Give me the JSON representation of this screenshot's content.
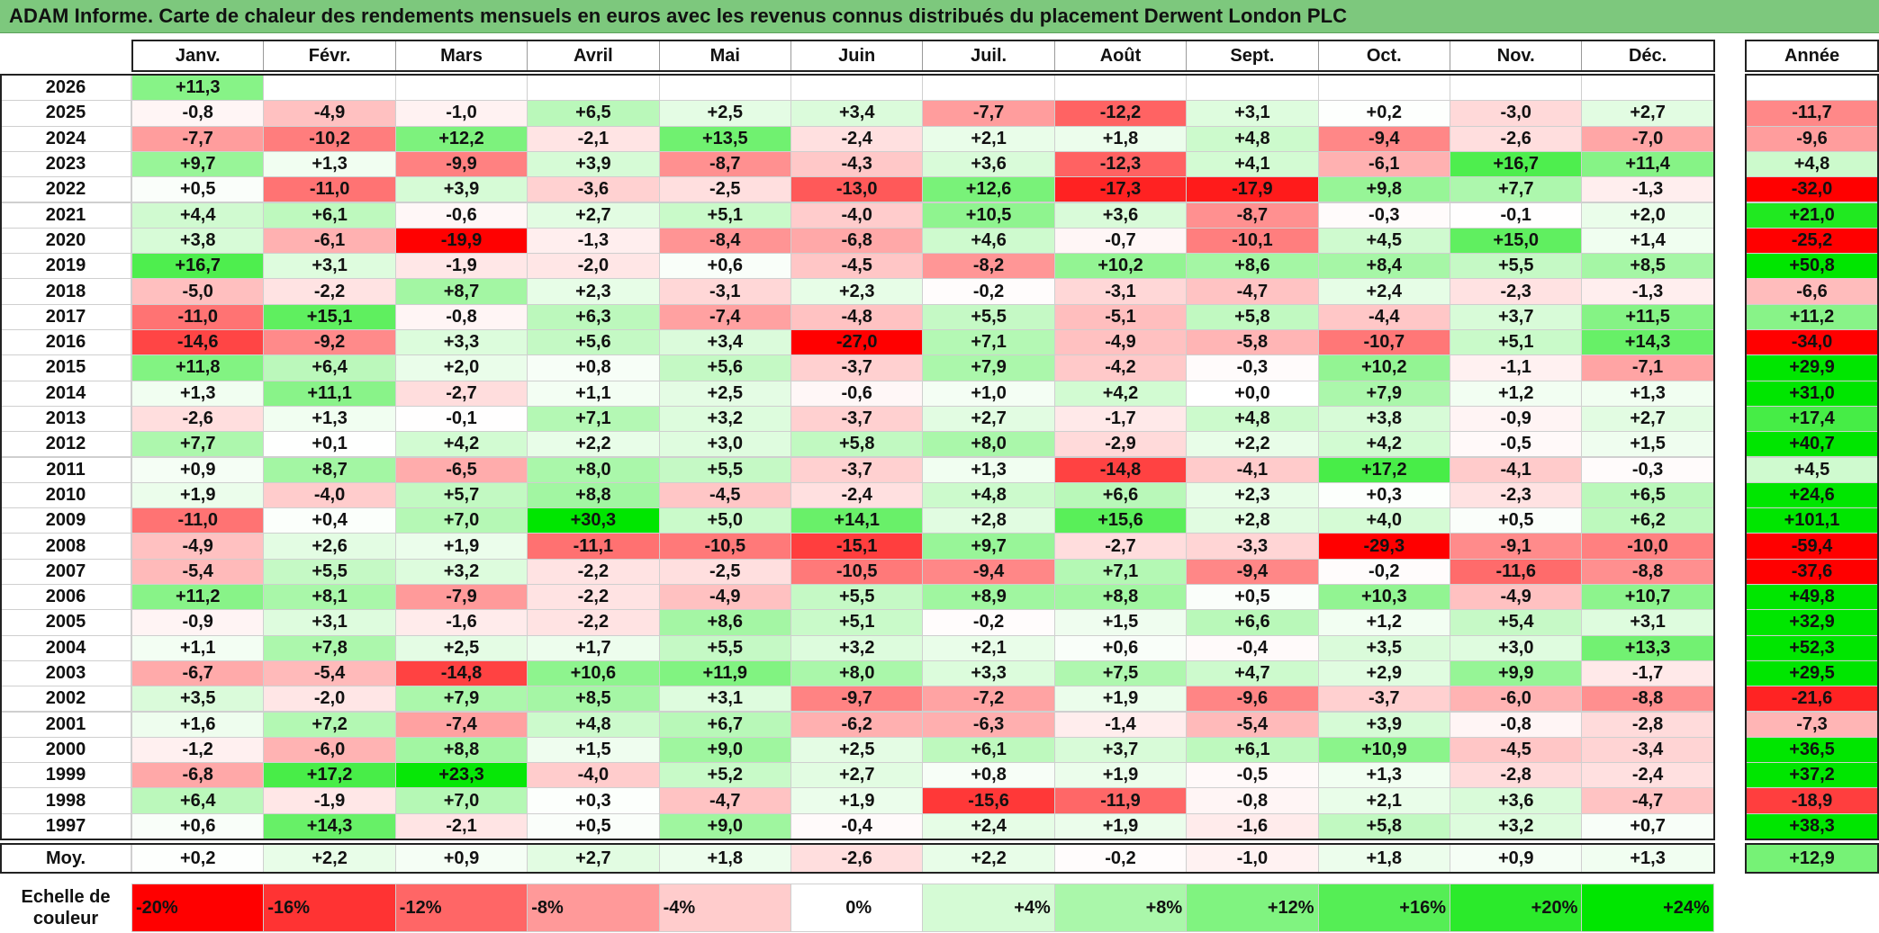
{
  "title": "ADAM Informe. Carte de chaleur des rendements mensuels en euros avec les revenus connus distribués du placement Derwent London PLC",
  "chart_data": {
    "type": "heatmap",
    "columns": [
      "Janv.",
      "Févr.",
      "Mars",
      "Avril",
      "Mai",
      "Juin",
      "Juil.",
      "Août",
      "Sept.",
      "Oct.",
      "Nov.",
      "Déc."
    ],
    "year_column_label": "Année",
    "average_row_label": "Moy.",
    "rows": [
      {
        "year": "2026",
        "values": [
          "+11,3",
          null,
          null,
          null,
          null,
          null,
          null,
          null,
          null,
          null,
          null,
          null
        ],
        "annual": null
      },
      {
        "year": "2025",
        "values": [
          "-0,8",
          "-4,9",
          "-1,0",
          "+6,5",
          "+2,5",
          "+3,4",
          "-7,7",
          "-12,2",
          "+3,1",
          "+0,2",
          "-3,0",
          "+2,7"
        ],
        "annual": "-11,7"
      },
      {
        "year": "2024",
        "values": [
          "-7,7",
          "-10,2",
          "+12,2",
          "-2,1",
          "+13,5",
          "-2,4",
          "+2,1",
          "+1,8",
          "+4,8",
          "-9,4",
          "-2,6",
          "-7,0"
        ],
        "annual": "-9,6"
      },
      {
        "year": "2023",
        "values": [
          "+9,7",
          "+1,3",
          "-9,9",
          "+3,9",
          "-8,7",
          "-4,3",
          "+3,6",
          "-12,3",
          "+4,1",
          "-6,1",
          "+16,7",
          "+11,4"
        ],
        "annual": "+4,8"
      },
      {
        "year": "2022",
        "values": [
          "+0,5",
          "-11,0",
          "+3,9",
          "-3,6",
          "-2,5",
          "-13,0",
          "+12,6",
          "-17,3",
          "-17,9",
          "+9,8",
          "+7,7",
          "-1,3"
        ],
        "annual": "-32,0"
      },
      {
        "year": "2021",
        "values": [
          "+4,4",
          "+6,1",
          "-0,6",
          "+2,7",
          "+5,1",
          "-4,0",
          "+10,5",
          "+3,6",
          "-8,7",
          "-0,3",
          "-0,1",
          "+2,0"
        ],
        "annual": "+21,0"
      },
      {
        "year": "2020",
        "values": [
          "+3,8",
          "-6,1",
          "-19,9",
          "-1,3",
          "-8,4",
          "-6,8",
          "+4,6",
          "-0,7",
          "-10,1",
          "+4,5",
          "+15,0",
          "+1,4"
        ],
        "annual": "-25,2"
      },
      {
        "year": "2019",
        "values": [
          "+16,7",
          "+3,1",
          "-1,9",
          "-2,0",
          "+0,6",
          "-4,5",
          "-8,2",
          "+10,2",
          "+8,6",
          "+8,4",
          "+5,5",
          "+8,5"
        ],
        "annual": "+50,8"
      },
      {
        "year": "2018",
        "values": [
          "-5,0",
          "-2,2",
          "+8,7",
          "+2,3",
          "-3,1",
          "+2,3",
          "-0,2",
          "-3,1",
          "-4,7",
          "+2,4",
          "-2,3",
          "-1,3"
        ],
        "annual": "-6,6"
      },
      {
        "year": "2017",
        "values": [
          "-11,0",
          "+15,1",
          "-0,8",
          "+6,3",
          "-7,4",
          "-4,8",
          "+5,5",
          "-5,1",
          "+5,8",
          "-4,4",
          "+3,7",
          "+11,5"
        ],
        "annual": "+11,2"
      },
      {
        "year": "2016",
        "values": [
          "-14,6",
          "-9,2",
          "+3,3",
          "+5,6",
          "+3,4",
          "-27,0",
          "+7,1",
          "-4,9",
          "-5,8",
          "-10,7",
          "+5,1",
          "+14,3"
        ],
        "annual": "-34,0"
      },
      {
        "year": "2015",
        "values": [
          "+11,8",
          "+6,4",
          "+2,0",
          "+0,8",
          "+5,6",
          "-3,7",
          "+7,9",
          "-4,2",
          "-0,3",
          "+10,2",
          "-1,1",
          "-7,1"
        ],
        "annual": "+29,9"
      },
      {
        "year": "2014",
        "values": [
          "+1,3",
          "+11,1",
          "-2,7",
          "+1,1",
          "+2,5",
          "-0,6",
          "+1,0",
          "+4,2",
          "+0,0",
          "+7,9",
          "+1,2",
          "+1,3"
        ],
        "annual": "+31,0"
      },
      {
        "year": "2013",
        "values": [
          "-2,6",
          "+1,3",
          "-0,1",
          "+7,1",
          "+3,2",
          "-3,7",
          "+2,7",
          "-1,7",
          "+4,8",
          "+3,8",
          "-0,9",
          "+2,7"
        ],
        "annual": "+17,4"
      },
      {
        "year": "2012",
        "values": [
          "+7,7",
          "+0,1",
          "+4,2",
          "+2,2",
          "+3,0",
          "+5,8",
          "+8,0",
          "-2,9",
          "+2,2",
          "+4,2",
          "-0,5",
          "+1,5"
        ],
        "annual": "+40,7"
      },
      {
        "year": "2011",
        "values": [
          "+0,9",
          "+8,7",
          "-6,5",
          "+8,0",
          "+5,5",
          "-3,7",
          "+1,3",
          "-14,8",
          "-4,1",
          "+17,2",
          "-4,1",
          "-0,3"
        ],
        "annual": "+4,5"
      },
      {
        "year": "2010",
        "values": [
          "+1,9",
          "-4,0",
          "+5,7",
          "+8,8",
          "-4,5",
          "-2,4",
          "+4,8",
          "+6,6",
          "+2,3",
          "+0,3",
          "-2,3",
          "+6,5"
        ],
        "annual": "+24,6"
      },
      {
        "year": "2009",
        "values": [
          "-11,0",
          "+0,4",
          "+7,0",
          "+30,3",
          "+5,0",
          "+14,1",
          "+2,8",
          "+15,6",
          "+2,8",
          "+4,0",
          "+0,5",
          "+6,2"
        ],
        "annual": "+101,1"
      },
      {
        "year": "2008",
        "values": [
          "-4,9",
          "+2,6",
          "+1,9",
          "-11,1",
          "-10,5",
          "-15,1",
          "+9,7",
          "-2,7",
          "-3,3",
          "-29,3",
          "-9,1",
          "-10,0"
        ],
        "annual": "-59,4"
      },
      {
        "year": "2007",
        "values": [
          "-5,4",
          "+5,5",
          "+3,2",
          "-2,2",
          "-2,5",
          "-10,5",
          "-9,4",
          "+7,1",
          "-9,4",
          "-0,2",
          "-11,6",
          "-8,8"
        ],
        "annual": "-37,6"
      },
      {
        "year": "2006",
        "values": [
          "+11,2",
          "+8,1",
          "-7,9",
          "-2,2",
          "-4,9",
          "+5,5",
          "+8,9",
          "+8,8",
          "+0,5",
          "+10,3",
          "-4,9",
          "+10,7"
        ],
        "annual": "+49,8"
      },
      {
        "year": "2005",
        "values": [
          "-0,9",
          "+3,1",
          "-1,6",
          "-2,2",
          "+8,6",
          "+5,1",
          "-0,2",
          "+1,5",
          "+6,6",
          "+1,2",
          "+5,4",
          "+3,1"
        ],
        "annual": "+32,9"
      },
      {
        "year": "2004",
        "values": [
          "+1,1",
          "+7,8",
          "+2,5",
          "+1,7",
          "+5,5",
          "+3,2",
          "+2,1",
          "+0,6",
          "-0,4",
          "+3,5",
          "+3,0",
          "+13,3"
        ],
        "annual": "+52,3"
      },
      {
        "year": "2003",
        "values": [
          "-6,7",
          "-5,4",
          "-14,8",
          "+10,6",
          "+11,9",
          "+8,0",
          "+3,3",
          "+7,5",
          "+4,7",
          "+2,9",
          "+9,9",
          "-1,7"
        ],
        "annual": "+29,5"
      },
      {
        "year": "2002",
        "values": [
          "+3,5",
          "-2,0",
          "+7,9",
          "+8,5",
          "+3,1",
          "-9,7",
          "-7,2",
          "+1,9",
          "-9,6",
          "-3,7",
          "-6,0",
          "-8,8"
        ],
        "annual": "-21,6"
      },
      {
        "year": "2001",
        "values": [
          "+1,6",
          "+7,2",
          "-7,4",
          "+4,8",
          "+6,7",
          "-6,2",
          "-6,3",
          "-1,4",
          "-5,4",
          "+3,9",
          "-0,8",
          "-2,8"
        ],
        "annual": "-7,3"
      },
      {
        "year": "2000",
        "values": [
          "-1,2",
          "-6,0",
          "+8,8",
          "+1,5",
          "+9,0",
          "+2,5",
          "+6,1",
          "+3,7",
          "+6,1",
          "+10,9",
          "-4,5",
          "-3,4"
        ],
        "annual": "+36,5"
      },
      {
        "year": "1999",
        "values": [
          "-6,8",
          "+17,2",
          "+23,3",
          "-4,0",
          "+5,2",
          "+2,7",
          "+0,8",
          "+1,9",
          "-0,5",
          "+1,3",
          "-2,8",
          "-2,4"
        ],
        "annual": "+37,2"
      },
      {
        "year": "1998",
        "values": [
          "+6,4",
          "-1,9",
          "+7,0",
          "+0,3",
          "-4,7",
          "+1,9",
          "-15,6",
          "-11,9",
          "-0,8",
          "+2,1",
          "+3,6",
          "-4,7"
        ],
        "annual": "-18,9"
      },
      {
        "year": "1997",
        "values": [
          "+0,6",
          "+14,3",
          "-2,1",
          "+0,5",
          "+9,0",
          "-0,4",
          "+2,4",
          "+1,9",
          "-1,6",
          "+5,8",
          "+3,2",
          "+0,7"
        ],
        "annual": "+38,3"
      }
    ],
    "averages": [
      "+0,2",
      "+2,2",
      "+0,9",
      "+2,7",
      "+1,8",
      "-2,6",
      "+2,2",
      "-0,2",
      "-1,0",
      "+1,8",
      "+0,9",
      "+1,3"
    ],
    "average_annual": "+12,9",
    "color_scale": {
      "label": "Echelle de couleur",
      "stops": [
        "-20%",
        "-16%",
        "-12%",
        "-8%",
        "-4%",
        "0%",
        "+4%",
        "+8%",
        "+12%",
        "+16%",
        "+20%",
        "+24%"
      ],
      "negative_color": "#ff0000",
      "positive_color": "#00e600",
      "neutral_color": "#ffffff"
    }
  }
}
